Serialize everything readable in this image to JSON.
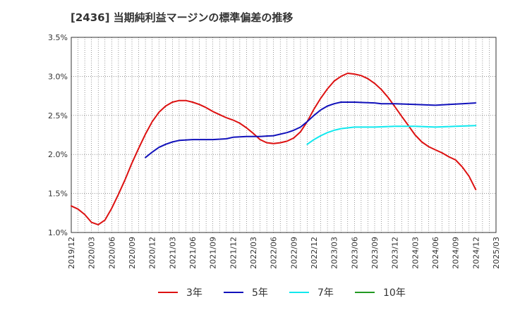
{
  "chart_data": {
    "type": "line",
    "title": "[2436]  当期純利益マージンの標準偏差の推移",
    "xlabel": "",
    "ylabel": "",
    "ylim": [
      1.0,
      3.5
    ],
    "grid": true,
    "legend_placement": "bottom",
    "x": [
      "2019/12",
      "2020/03",
      "2020/06",
      "2020/09",
      "2020/12",
      "2021/03",
      "2021/06",
      "2021/09",
      "2021/12",
      "2022/03",
      "2022/06",
      "2022/09",
      "2022/12",
      "2023/03",
      "2023/06",
      "2023/09",
      "2023/12",
      "2024/03",
      "2024/06",
      "2024/09",
      "2024/12",
      "2025/03"
    ],
    "y_ticks": [
      "1.0%",
      "1.5%",
      "2.0%",
      "2.5%",
      "3.0%",
      "3.5%"
    ],
    "series": [
      {
        "name": "3年",
        "color": "#dd1111",
        "points": [
          [
            "2019/12",
            1.34
          ],
          [
            "2020/01",
            1.3
          ],
          [
            "2020/02",
            1.23
          ],
          [
            "2020/03",
            1.13
          ],
          [
            "2020/04",
            1.1
          ],
          [
            "2020/05",
            1.16
          ],
          [
            "2020/06",
            1.31
          ],
          [
            "2020/07",
            1.49
          ],
          [
            "2020/08",
            1.68
          ],
          [
            "2020/09",
            1.89
          ],
          [
            "2020/10",
            2.08
          ],
          [
            "2020/11",
            2.26
          ],
          [
            "2020/12",
            2.42
          ],
          [
            "2021/01",
            2.54
          ],
          [
            "2021/02",
            2.62
          ],
          [
            "2021/03",
            2.67
          ],
          [
            "2021/04",
            2.69
          ],
          [
            "2021/05",
            2.69
          ],
          [
            "2021/06",
            2.67
          ],
          [
            "2021/07",
            2.64
          ],
          [
            "2021/08",
            2.6
          ],
          [
            "2021/09",
            2.55
          ],
          [
            "2021/10",
            2.51
          ],
          [
            "2021/11",
            2.47
          ],
          [
            "2021/12",
            2.44
          ],
          [
            "2022/01",
            2.4
          ],
          [
            "2022/02",
            2.34
          ],
          [
            "2022/03",
            2.27
          ],
          [
            "2022/04",
            2.19
          ],
          [
            "2022/05",
            2.15
          ],
          [
            "2022/06",
            2.14
          ],
          [
            "2022/07",
            2.15
          ],
          [
            "2022/08",
            2.17
          ],
          [
            "2022/09",
            2.21
          ],
          [
            "2022/10",
            2.29
          ],
          [
            "2022/11",
            2.42
          ],
          [
            "2022/12",
            2.58
          ],
          [
            "2023/01",
            2.72
          ],
          [
            "2023/02",
            2.84
          ],
          [
            "2023/03",
            2.94
          ],
          [
            "2023/04",
            3.0
          ],
          [
            "2023/05",
            3.04
          ],
          [
            "2023/06",
            3.03
          ],
          [
            "2023/07",
            3.01
          ],
          [
            "2023/08",
            2.97
          ],
          [
            "2023/09",
            2.91
          ],
          [
            "2023/10",
            2.83
          ],
          [
            "2023/11",
            2.73
          ],
          [
            "2023/12",
            2.61
          ],
          [
            "2024/01",
            2.49
          ],
          [
            "2024/02",
            2.37
          ],
          [
            "2024/03",
            2.25
          ],
          [
            "2024/04",
            2.16
          ],
          [
            "2024/05",
            2.1
          ],
          [
            "2024/06",
            2.06
          ],
          [
            "2024/07",
            2.02
          ],
          [
            "2024/08",
            1.97
          ],
          [
            "2024/09",
            1.93
          ],
          [
            "2024/10",
            1.84
          ],
          [
            "2024/11",
            1.72
          ],
          [
            "2024/12",
            1.55
          ]
        ]
      },
      {
        "name": "5年",
        "color": "#1111bb",
        "points": [
          [
            "2020/11",
            1.96
          ],
          [
            "2020/12",
            2.03
          ],
          [
            "2021/01",
            2.09
          ],
          [
            "2021/02",
            2.13
          ],
          [
            "2021/03",
            2.16
          ],
          [
            "2021/04",
            2.18
          ],
          [
            "2021/06",
            2.19
          ],
          [
            "2021/09",
            2.19
          ],
          [
            "2021/11",
            2.2
          ],
          [
            "2021/12",
            2.22
          ],
          [
            "2022/02",
            2.23
          ],
          [
            "2022/04",
            2.23
          ],
          [
            "2022/06",
            2.24
          ],
          [
            "2022/08",
            2.28
          ],
          [
            "2022/09",
            2.31
          ],
          [
            "2022/10",
            2.35
          ],
          [
            "2022/11",
            2.42
          ],
          [
            "2022/12",
            2.5
          ],
          [
            "2023/01",
            2.57
          ],
          [
            "2023/02",
            2.62
          ],
          [
            "2023/03",
            2.65
          ],
          [
            "2023/04",
            2.67
          ],
          [
            "2023/06",
            2.67
          ],
          [
            "2023/09",
            2.66
          ],
          [
            "2023/10",
            2.65
          ],
          [
            "2023/12",
            2.65
          ],
          [
            "2024/03",
            2.64
          ],
          [
            "2024/06",
            2.63
          ],
          [
            "2024/08",
            2.64
          ],
          [
            "2024/10",
            2.65
          ],
          [
            "2024/12",
            2.66
          ]
        ]
      },
      {
        "name": "7年",
        "color": "#11e8ee",
        "points": [
          [
            "2022/11",
            2.13
          ],
          [
            "2022/12",
            2.19
          ],
          [
            "2023/01",
            2.24
          ],
          [
            "2023/02",
            2.28
          ],
          [
            "2023/03",
            2.31
          ],
          [
            "2023/04",
            2.33
          ],
          [
            "2023/05",
            2.34
          ],
          [
            "2023/06",
            2.35
          ],
          [
            "2023/09",
            2.35
          ],
          [
            "2023/12",
            2.36
          ],
          [
            "2024/03",
            2.36
          ],
          [
            "2024/06",
            2.35
          ],
          [
            "2024/09",
            2.36
          ],
          [
            "2024/12",
            2.37
          ]
        ]
      },
      {
        "name": "10年",
        "color": "#229922",
        "points": []
      }
    ]
  }
}
